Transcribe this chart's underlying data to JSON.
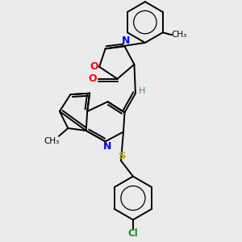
{
  "background_color": "#ebebeb",
  "bond_color": "#000000",
  "atom_colors": {
    "O": "#ff0000",
    "N": "#0000ff",
    "S": "#bbaa00",
    "Cl": "#228822",
    "C": "#000000",
    "H": "#448888"
  },
  "figsize": [
    3.0,
    3.0
  ],
  "dpi": 100
}
